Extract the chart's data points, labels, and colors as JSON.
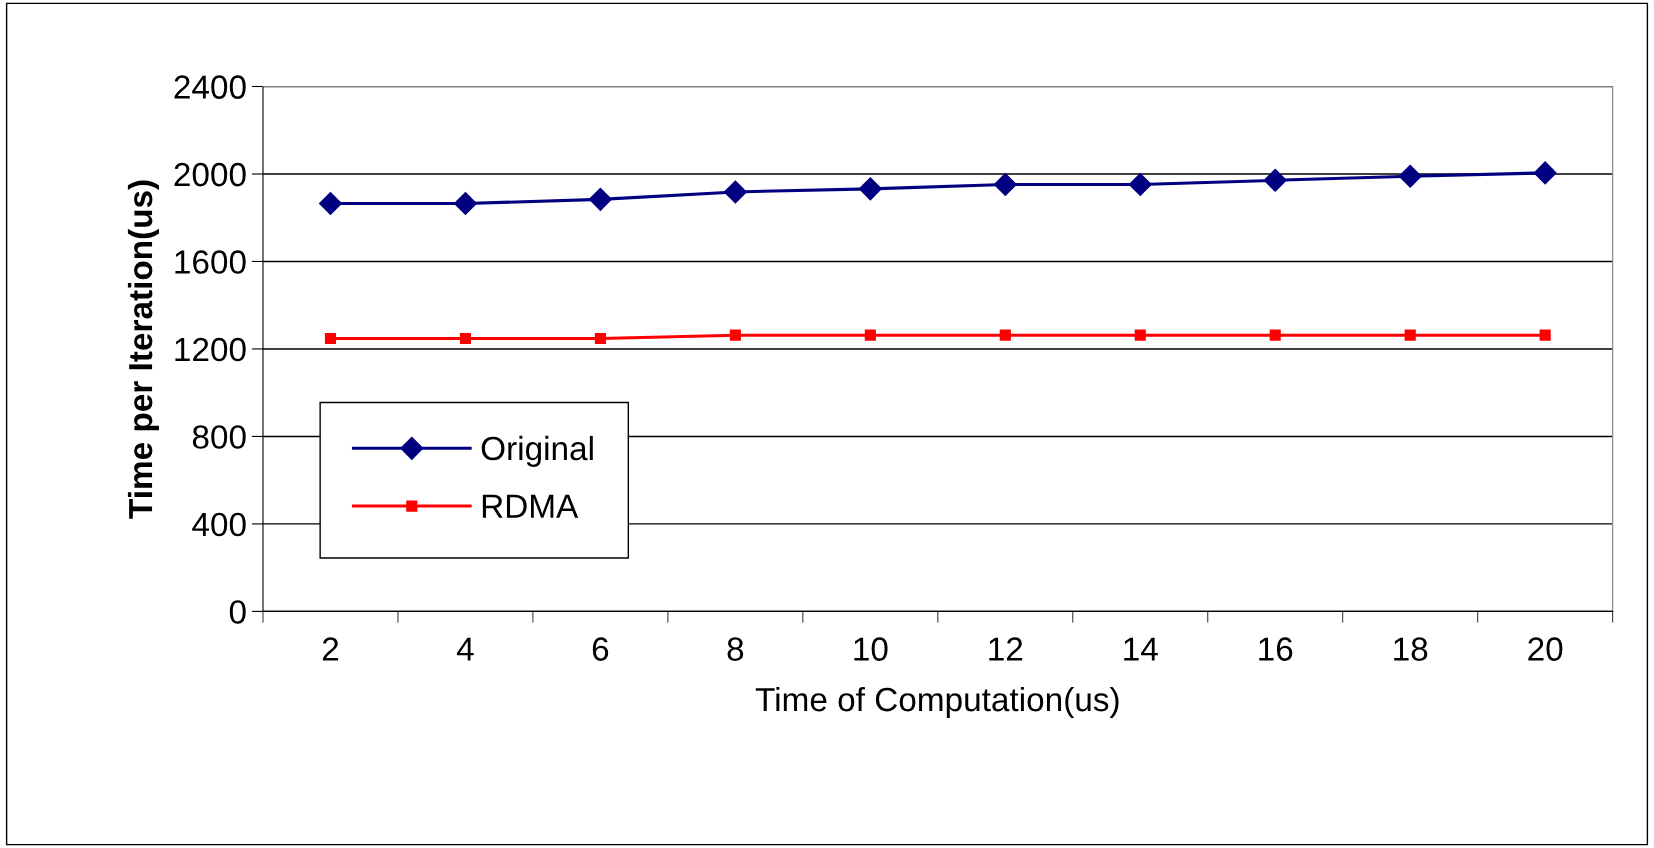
{
  "chart_data": {
    "type": "line",
    "xlabel": "Time of Computation(us)",
    "ylabel": "Time per Iteration(us)",
    "categories": [
      "2",
      "4",
      "6",
      "8",
      "10",
      "12",
      "14",
      "16",
      "18",
      "20"
    ],
    "series": [
      {
        "name": "Original",
        "color": "#000080",
        "marker": "diamond",
        "values": [
          1865,
          1865,
          1884,
          1918,
          1932,
          1952,
          1952,
          1971,
          1990,
          2005
        ]
      },
      {
        "name": "RDMA",
        "color": "#ff0000",
        "marker": "square",
        "values": [
          1248,
          1248,
          1248,
          1263,
          1263,
          1263,
          1263,
          1263,
          1263,
          1263
        ]
      }
    ],
    "ylim": [
      0,
      2400
    ],
    "yticks": [
      0,
      400,
      800,
      1200,
      1600,
      2000,
      2400
    ],
    "grid": "y",
    "legend": "bottom left",
    "line_style": "solid"
  }
}
